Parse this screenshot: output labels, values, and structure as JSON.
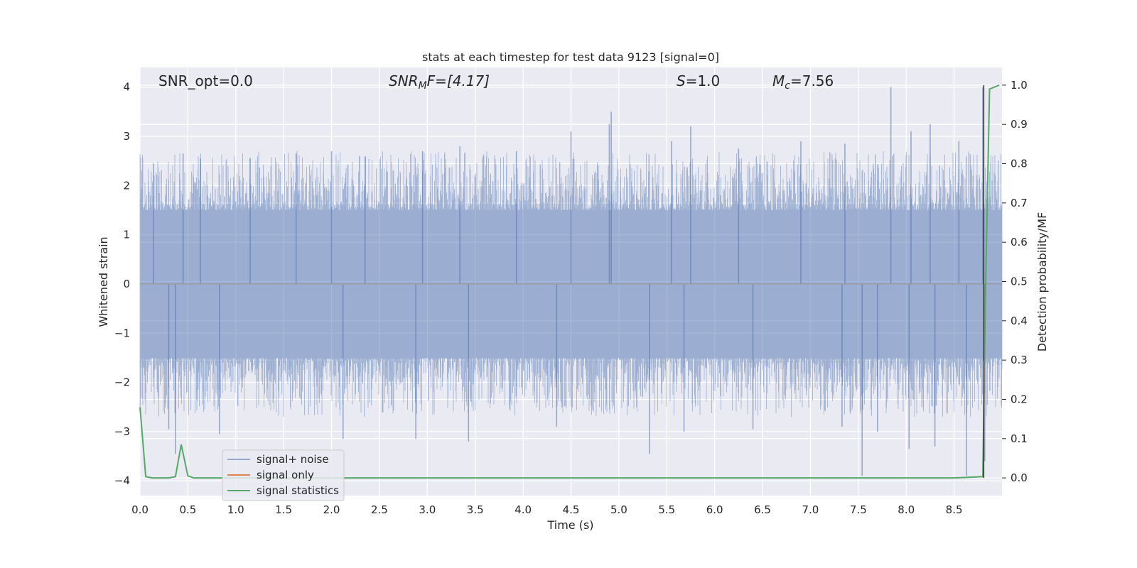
{
  "chart_data": {
    "type": "line",
    "title": "stats at each timestep for test data 9123 [signal=0]",
    "xlabel": "Time (s)",
    "ylabel": "Whitened strain",
    "ylabel_right": "Detection probability/MF",
    "xlim": [
      0.0,
      9.0
    ],
    "ylim": [
      -4.3,
      4.4
    ],
    "ylim_right": [
      -0.045,
      1.045
    ],
    "xticks": [
      "0.0",
      "0.5",
      "1.0",
      "1.5",
      "2.0",
      "2.5",
      "3.0",
      "3.5",
      "4.0",
      "4.5",
      "5.0",
      "5.5",
      "6.0",
      "6.5",
      "7.0",
      "7.5",
      "8.0",
      "8.5"
    ],
    "yticks": [
      "4",
      "3",
      "2",
      "1",
      "0",
      "−1",
      "−2",
      "−3",
      "−4"
    ],
    "yticks_right": [
      "1.0",
      "0.9",
      "0.8",
      "0.7",
      "0.6",
      "0.5",
      "0.4",
      "0.3",
      "0.2",
      "0.1",
      "0.0"
    ],
    "grid": true,
    "legend_position": "lower-left",
    "annotations": {
      "snr_opt": "SNR_opt=0.0",
      "snr_mf_base": "SNR",
      "snr_mf_sub": "M",
      "snr_mf_rest": "F=[4.17]",
      "s_base": "S",
      "s_rest": "=1.0",
      "mc_base": "M",
      "mc_sub": "c",
      "mc_rest": "=7.56"
    },
    "series": [
      {
        "name": "signal+ noise",
        "color": "#4c72b0",
        "kind": "noise",
        "envelope_typical": [
          -1.6,
          1.6
        ],
        "peaks": [
          {
            "x": 0.14,
            "y": 2.45
          },
          {
            "x": 0.45,
            "y": 2.65
          },
          {
            "x": 0.63,
            "y": 2.55
          },
          {
            "x": 1.15,
            "y": 2.55
          },
          {
            "x": 1.63,
            "y": 2.65
          },
          {
            "x": 2.0,
            "y": 2.7
          },
          {
            "x": 2.35,
            "y": 2.6
          },
          {
            "x": 2.95,
            "y": 2.7
          },
          {
            "x": 3.34,
            "y": 2.8
          },
          {
            "x": 3.93,
            "y": 2.7
          },
          {
            "x": 4.5,
            "y": 3.1
          },
          {
            "x": 4.92,
            "y": 3.5
          },
          {
            "x": 4.9,
            "y": 3.25
          },
          {
            "x": 5.55,
            "y": 2.9
          },
          {
            "x": 5.75,
            "y": 3.2
          },
          {
            "x": 6.25,
            "y": 2.75
          },
          {
            "x": 6.9,
            "y": 2.9
          },
          {
            "x": 7.36,
            "y": 2.85
          },
          {
            "x": 7.84,
            "y": 4.0
          },
          {
            "x": 8.05,
            "y": 3.1
          },
          {
            "x": 8.25,
            "y": 3.25
          },
          {
            "x": 8.55,
            "y": 2.9
          },
          {
            "x": 8.8,
            "y": 4.0
          }
        ],
        "troughs": [
          {
            "x": 0.37,
            "y": -3.45
          },
          {
            "x": 0.3,
            "y": -2.95
          },
          {
            "x": 0.83,
            "y": -3.05
          },
          {
            "x": 2.12,
            "y": -3.15
          },
          {
            "x": 2.88,
            "y": -3.15
          },
          {
            "x": 3.43,
            "y": -3.2
          },
          {
            "x": 4.35,
            "y": -2.9
          },
          {
            "x": 5.32,
            "y": -3.45
          },
          {
            "x": 5.68,
            "y": -3.0
          },
          {
            "x": 6.4,
            "y": -2.95
          },
          {
            "x": 7.33,
            "y": -2.9
          },
          {
            "x": 7.54,
            "y": -3.9
          },
          {
            "x": 7.7,
            "y": -3.0
          },
          {
            "x": 8.03,
            "y": -3.35
          },
          {
            "x": 8.3,
            "y": -3.3
          },
          {
            "x": 8.63,
            "y": -3.9
          },
          {
            "x": 8.82,
            "y": -3.6
          }
        ]
      },
      {
        "name": "signal only",
        "color": "#dd8452",
        "kind": "line",
        "x": [
          0.0,
          9.0
        ],
        "y": [
          0.0,
          0.0
        ]
      },
      {
        "name": "signal statistics",
        "color": "#55a868",
        "kind": "line",
        "axis": "right",
        "x": [
          0.0,
          0.06,
          0.13,
          0.2,
          0.3,
          0.37,
          0.43,
          0.5,
          0.56,
          0.8,
          1.5,
          3.0,
          4.5,
          5.8,
          5.9,
          6.0,
          7.0,
          8.0,
          8.5,
          8.8,
          8.83,
          8.87,
          8.92,
          8.97
        ],
        "y": [
          0.18,
          0.003,
          0.0,
          0.0,
          0.0,
          0.003,
          0.085,
          0.005,
          0.0,
          0.0,
          0.0,
          0.0,
          0.0,
          0.0,
          0.0,
          0.0,
          0.0,
          0.0,
          0.0,
          0.003,
          0.5,
          0.99,
          0.995,
          1.0
        ]
      },
      {
        "name": "",
        "color": "#303030",
        "kind": "line",
        "axis": "right",
        "x": [
          8.81,
          8.81
        ],
        "y": [
          0.0,
          1.0
        ]
      }
    ]
  }
}
